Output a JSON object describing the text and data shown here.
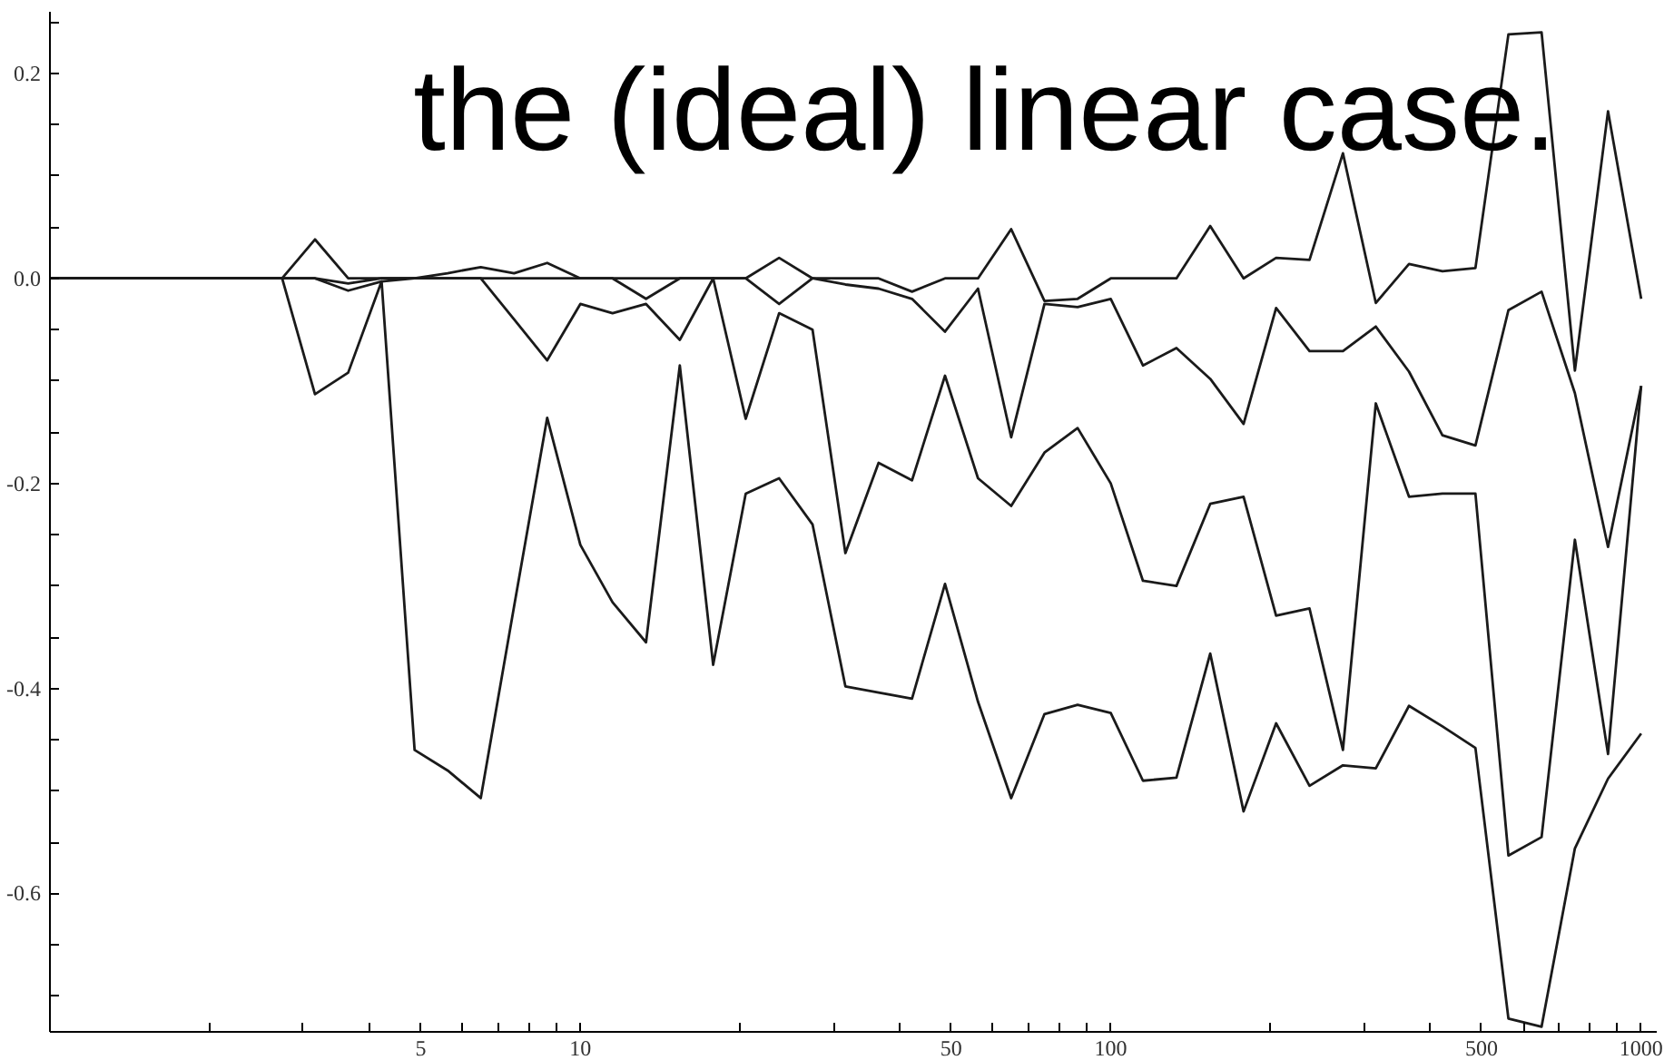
{
  "chart_data": {
    "type": "line",
    "annotations": [
      "the (ideal) linear case."
    ],
    "x": [
      1,
      1.15,
      1.33,
      1.54,
      1.78,
      2.05,
      2.37,
      2.74,
      3.16,
      3.65,
      4.22,
      4.87,
      5.62,
      6.49,
      7.5,
      8.66,
      10,
      11.5,
      13.3,
      15.4,
      17.8,
      20.5,
      23.7,
      27.4,
      31.6,
      36.5,
      42.2,
      48.7,
      56.2,
      64.9,
      75,
      86.6,
      100,
      115,
      133,
      154,
      178,
      205,
      237,
      274,
      316,
      365,
      422,
      487,
      562,
      649,
      750,
      866,
      1000
    ],
    "series": [
      {
        "color": "#1a1a1a",
        "values": [
          0,
          0,
          0,
          0,
          0,
          0,
          0,
          0,
          0.038,
          0,
          0,
          0,
          0.005,
          0.011,
          0.005,
          0.015,
          0,
          0,
          0,
          0,
          0,
          0,
          0.02,
          0,
          0,
          0,
          -0.013,
          0,
          0,
          0.048,
          -0.022,
          -0.02,
          0,
          0,
          0,
          0.051,
          0,
          0.02,
          0.018,
          0.122,
          -0.024,
          0.014,
          0.007,
          0.01,
          0.238,
          0.24,
          -0.09,
          0.163,
          -0.02
        ]
      },
      {
        "color": "#1a1a1a",
        "values": [
          0,
          0,
          0,
          0,
          0,
          0,
          0,
          0,
          0,
          -0.005,
          0,
          0,
          0,
          0,
          0,
          0,
          0,
          0,
          -0.02,
          0,
          0,
          0,
          -0.025,
          0,
          -0.006,
          -0.01,
          -0.02,
          -0.052,
          -0.01,
          -0.155,
          -0.025,
          -0.028,
          -0.02,
          -0.085,
          -0.068,
          -0.098,
          -0.142,
          -0.029,
          -0.071,
          -0.071,
          -0.047,
          -0.091,
          -0.153,
          -0.163,
          -0.031,
          -0.013,
          -0.112,
          -0.262,
          -0.105
        ]
      },
      {
        "color": "#1a1a1a",
        "values": [
          0,
          0,
          0,
          0,
          0,
          0,
          0,
          0,
          0,
          -0.012,
          -0.003,
          0,
          0,
          0,
          -0.04,
          -0.08,
          -0.025,
          -0.034,
          -0.025,
          -0.06,
          0,
          -0.137,
          -0.034,
          -0.05,
          -0.268,
          -0.18,
          -0.197,
          -0.095,
          -0.195,
          -0.222,
          -0.17,
          -0.146,
          -0.2,
          -0.295,
          -0.3,
          -0.22,
          -0.213,
          -0.329,
          -0.322,
          -0.46,
          -0.122,
          -0.213,
          -0.21,
          -0.21,
          -0.563,
          -0.545,
          -0.255,
          -0.464,
          -0.105
        ]
      },
      {
        "color": "#1a1a1a",
        "values": [
          0,
          0,
          0,
          0,
          0,
          0,
          0,
          0,
          -0.113,
          -0.092,
          -0.003,
          -0.46,
          -0.48,
          -0.507,
          -0.32,
          -0.136,
          -0.26,
          -0.316,
          -0.355,
          -0.085,
          -0.377,
          -0.21,
          -0.195,
          -0.24,
          -0.398,
          -0.404,
          -0.41,
          -0.298,
          -0.413,
          -0.507,
          -0.425,
          -0.416,
          -0.424,
          -0.49,
          -0.487,
          -0.366,
          -0.52,
          -0.434,
          -0.495,
          -0.475,
          -0.478,
          -0.417,
          -0.437,
          -0.458,
          -0.722,
          -0.73,
          -0.556,
          -0.488,
          -0.444
        ]
      }
    ],
    "log": "x",
    "xlim": [
      1,
      1070
    ],
    "ylim": [
      -0.735,
      0.26
    ],
    "xticks": [
      {
        "value": 2,
        "label": null
      },
      {
        "value": 3,
        "label": null
      },
      {
        "value": 4,
        "label": null
      },
      5,
      {
        "value": 6,
        "label": null
      },
      {
        "value": 7,
        "label": null
      },
      {
        "value": 8,
        "label": null
      },
      {
        "value": 9,
        "label": null
      },
      10,
      {
        "value": 20,
        "label": null
      },
      {
        "value": 30,
        "label": null
      },
      {
        "value": 40,
        "label": null
      },
      50,
      {
        "value": 60,
        "label": null
      },
      {
        "value": 70,
        "label": null
      },
      {
        "value": 80,
        "label": null
      },
      {
        "value": 90,
        "label": null
      },
      100,
      {
        "value": 200,
        "label": null
      },
      {
        "value": 300,
        "label": null
      },
      {
        "value": 400,
        "label": null
      },
      500,
      {
        "value": 600,
        "label": null
      },
      {
        "value": 700,
        "label": null
      },
      {
        "value": 800,
        "label": null
      },
      {
        "value": 900,
        "label": null
      },
      1000
    ],
    "yticks": [
      {
        "value": -0.7,
        "label": null
      },
      {
        "value": -0.65,
        "label": null
      },
      {
        "value": -0.6,
        "label": "-0.6"
      },
      {
        "value": -0.55,
        "label": null
      },
      {
        "value": -0.5,
        "label": null
      },
      {
        "value": -0.45,
        "label": null
      },
      {
        "value": -0.4,
        "label": "-0.4"
      },
      {
        "value": -0.35,
        "label": null
      },
      {
        "value": -0.3,
        "label": null
      },
      {
        "value": -0.25,
        "label": null
      },
      {
        "value": -0.2,
        "label": "-0.2"
      },
      {
        "value": -0.15,
        "label": null
      },
      {
        "value": -0.1,
        "label": null
      },
      {
        "value": -0.05,
        "label": null
      },
      {
        "value": 0,
        "label": "0.0"
      },
      {
        "value": 0.05,
        "label": null
      },
      {
        "value": 0.1,
        "label": null
      },
      {
        "value": 0.15,
        "label": null
      },
      {
        "value": 0.2,
        "label": "0.2"
      },
      {
        "value": 0.25,
        "label": null
      }
    ],
    "grid": false,
    "marker": "none",
    "line_style": "solid"
  }
}
